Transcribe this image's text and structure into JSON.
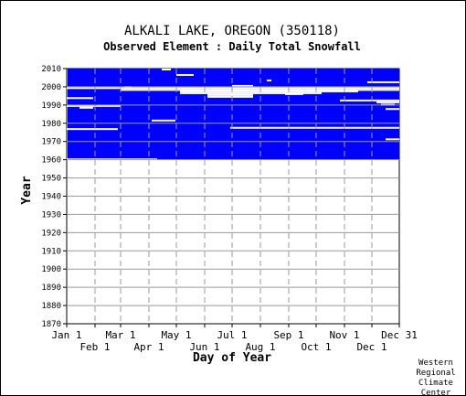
{
  "colors": {
    "coverage": "#0000ff",
    "gap": "#ffffff",
    "grid": "#999999",
    "axis": "#000000"
  },
  "chart_data": {
    "type": "heatmap",
    "title": "ALKALI LAKE, OREGON   (350118)",
    "subtitle": "Observed Element : Daily Total Snowfall",
    "xlabel": "Day of Year",
    "ylabel": "Year",
    "ylim": [
      1870,
      2010
    ],
    "xlim": [
      1,
      365
    ],
    "y_ticks": [
      2010,
      2000,
      1990,
      1980,
      1970,
      1960,
      1950,
      1940,
      1930,
      1920,
      1910,
      1900,
      1890,
      1880,
      1870
    ],
    "x_ticks_top": [
      {
        "label": "Jan 1",
        "day": 1
      },
      {
        "label": "Mar 1",
        "day": 60
      },
      {
        "label": "May 1",
        "day": 121
      },
      {
        "label": "Jul 1",
        "day": 182
      },
      {
        "label": "Sep 1",
        "day": 244
      },
      {
        "label": "Nov 1",
        "day": 305
      },
      {
        "label": "Dec 31",
        "day": 365
      }
    ],
    "x_ticks_bottom": [
      {
        "label": "Feb 1",
        "day": 32
      },
      {
        "label": "Apr 1",
        "day": 91
      },
      {
        "label": "Jun 1",
        "day": 152
      },
      {
        "label": "Aug 1",
        "day": 213
      },
      {
        "label": "Oct 1",
        "day": 274
      },
      {
        "label": "Dec 1",
        "day": 335
      }
    ],
    "grid": true,
    "coverage_period": {
      "start_year": 1960,
      "end_year": 2010
    },
    "missing_segments": [
      {
        "year": 1999.3,
        "day_start": 1,
        "day_end": 365
      },
      {
        "year": 1998.3,
        "day_start": 60,
        "day_end": 365
      },
      {
        "year": 1997.5,
        "day_start": 125,
        "day_end": 320
      },
      {
        "year": 1996.5,
        "day_start": 125,
        "day_end": 280
      },
      {
        "year": 1995.5,
        "day_start": 155,
        "day_end": 205
      },
      {
        "year": 1994.5,
        "day_start": 155,
        "day_end": 205
      },
      {
        "year": 1993.8,
        "day_start": 1,
        "day_end": 30
      },
      {
        "year": 1992.5,
        "day_start": 300,
        "day_end": 365
      },
      {
        "year": 1989.5,
        "day_start": 1,
        "day_end": 60
      },
      {
        "year": 1988.5,
        "day_start": 15,
        "day_end": 30
      },
      {
        "year": 1981.5,
        "day_start": 94,
        "day_end": 120
      },
      {
        "year": 1977.5,
        "day_start": 180,
        "day_end": 365
      },
      {
        "year": 1976.8,
        "day_start": 1,
        "day_end": 57
      },
      {
        "year": 1971.2,
        "day_start": 350,
        "day_end": 365
      },
      {
        "year": 1960.2,
        "day_start": 1,
        "day_end": 100
      },
      {
        "year": 2009.5,
        "day_start": 105,
        "day_end": 115
      },
      {
        "year": 2006.5,
        "day_start": 121,
        "day_end": 140
      },
      {
        "year": 2003.5,
        "day_start": 220,
        "day_end": 225
      },
      {
        "year": 2002.5,
        "day_start": 330,
        "day_end": 365
      },
      {
        "year": 2000.5,
        "day_start": 182,
        "day_end": 205
      },
      {
        "year": 1999.8,
        "day_start": 64,
        "day_end": 72
      },
      {
        "year": 1996.0,
        "day_start": 240,
        "day_end": 260
      },
      {
        "year": 1991.5,
        "day_start": 340,
        "day_end": 365
      },
      {
        "year": 1990.2,
        "day_start": 345,
        "day_end": 360
      },
      {
        "year": 1987.8,
        "day_start": 350,
        "day_end": 365
      }
    ]
  },
  "credit": [
    "Western",
    "Regional",
    "Climate",
    "Center"
  ]
}
